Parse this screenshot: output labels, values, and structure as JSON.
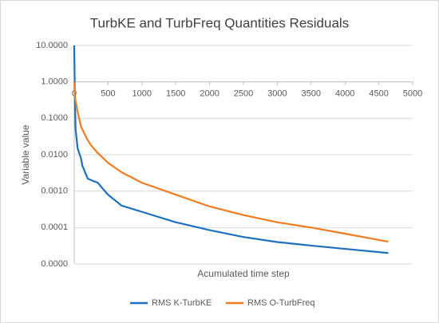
{
  "chart_data": {
    "type": "line",
    "title": "TurbKE and TurbFreq Quantities Residuals",
    "x_label": "Acumulated time step",
    "y_label": "Variable value",
    "x": [
      0,
      10,
      20,
      50,
      100,
      120,
      200,
      250,
      350,
      400,
      500,
      700,
      1000,
      1500,
      2000,
      2500,
      3000,
      3500,
      4000,
      4640
    ],
    "series": [
      {
        "name": "RMS K-TurbKE",
        "color": "#1f6fbf",
        "values": [
          10,
          0.3,
          0.05,
          0.015,
          0.008,
          0.005,
          0.0022,
          0.002,
          0.0017,
          0.0013,
          0.0008,
          0.0004,
          0.00027,
          0.00014,
          8.5e-05,
          5.5e-05,
          4e-05,
          3.2e-05,
          2.6e-05,
          2e-05
        ]
      },
      {
        "name": "RMS O-TurbFreq",
        "color": "#f07c22",
        "values": [
          1,
          0.4,
          0.3,
          0.15,
          0.06,
          0.05,
          0.025,
          0.018,
          0.011,
          0.009,
          0.006,
          0.0033,
          0.0017,
          0.0008,
          0.00038,
          0.00022,
          0.00014,
          0.0001,
          6.8e-05,
          4.1e-05
        ]
      }
    ],
    "xlim": [
      0,
      5000
    ],
    "xticks": [
      0,
      500,
      1000,
      1500,
      2000,
      2500,
      3000,
      3500,
      4000,
      4500,
      5000
    ],
    "ylim": [
      1e-05,
      10
    ],
    "yticks": [
      {
        "value": 10,
        "label": "10.0000"
      },
      {
        "value": 1,
        "label": "1.0000"
      },
      {
        "value": 0.1,
        "label": "0.1000"
      },
      {
        "value": 0.01,
        "label": "0.0100"
      },
      {
        "value": 0.001,
        "label": "0.0010"
      },
      {
        "value": 0.0001,
        "label": "0.0001"
      },
      {
        "value": 1e-05,
        "label": "0.0000"
      }
    ],
    "y_log": true,
    "x_axis_crosses_at": 1,
    "grid": true,
    "legend": "bottom"
  }
}
